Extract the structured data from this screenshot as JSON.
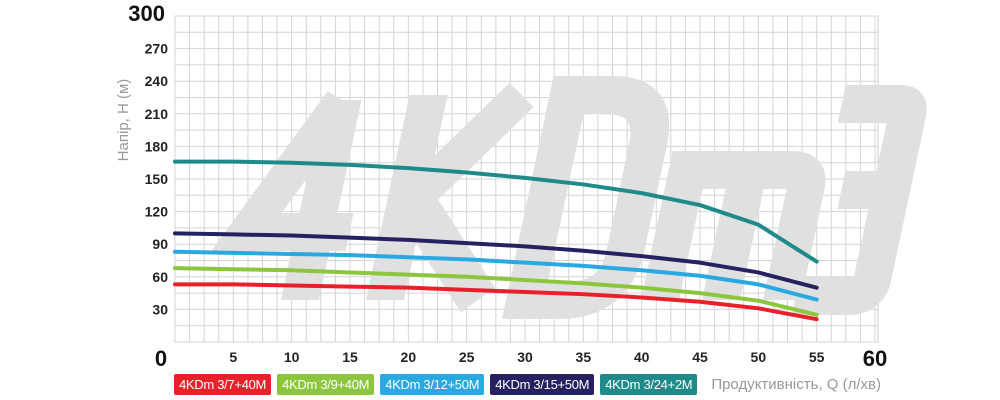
{
  "chart_data": {
    "type": "line",
    "watermark": "4KDm3",
    "xlabel": "Продуктивність, Q (л/хв)",
    "ylabel": "Напір, H (м)",
    "xlim": [
      0,
      60
    ],
    "ylim": [
      0,
      300
    ],
    "xticks": [
      0,
      5,
      10,
      15,
      20,
      25,
      30,
      35,
      40,
      45,
      50,
      55,
      60
    ],
    "yticks": [
      0,
      30,
      60,
      90,
      120,
      150,
      180,
      210,
      240,
      270,
      300
    ],
    "grid": true,
    "legend": "bottom",
    "x": [
      0,
      5,
      10,
      15,
      20,
      25,
      30,
      35,
      40,
      45,
      50,
      55
    ],
    "series": [
      {
        "name": "4KDm 3/7+40M",
        "color": "#e8202a",
        "values": [
          53,
          53,
          52,
          51,
          50,
          48,
          46,
          44,
          41,
          37,
          31,
          21
        ]
      },
      {
        "name": "4KDm 3/9+40M",
        "color": "#8cc63f",
        "values": [
          68,
          67,
          66,
          64,
          62,
          60,
          57,
          54,
          50,
          45,
          38,
          25
        ]
      },
      {
        "name": "4KDm 3/12+50M",
        "color": "#29a9e1",
        "values": [
          83,
          82,
          81,
          80,
          78,
          76,
          73,
          70,
          66,
          61,
          53,
          39
        ]
      },
      {
        "name": "4KDm 3/15+50M",
        "color": "#262262",
        "values": [
          100,
          99,
          98,
          96,
          94,
          91,
          88,
          84,
          79,
          73,
          64,
          50
        ]
      },
      {
        "name": "4KDm 3/24+2M",
        "color": "#1f8a8a",
        "values": [
          166,
          166,
          165,
          163,
          160,
          156,
          151,
          145,
          137,
          126,
          108,
          74
        ]
      }
    ]
  }
}
